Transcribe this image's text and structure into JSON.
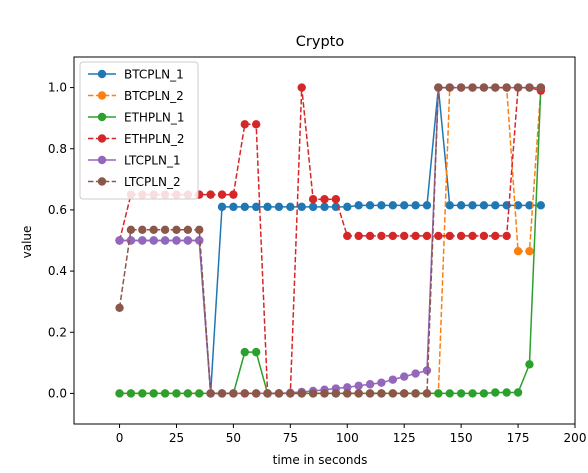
{
  "chart_data": {
    "type": "line",
    "title": "Crypto",
    "xlabel": "time in seconds",
    "ylabel": "value",
    "xlim": [
      -20,
      200
    ],
    "ylim": [
      -0.1,
      1.1
    ],
    "xticks": [
      0,
      25,
      50,
      75,
      100,
      125,
      150,
      175,
      200
    ],
    "xtick_labels": [
      "0",
      "25",
      "50",
      "75",
      "100",
      "125",
      "150",
      "175",
      "200"
    ],
    "yticks": [
      0.0,
      0.2,
      0.4,
      0.6,
      0.8,
      1.0
    ],
    "ytick_labels": [
      "0.0",
      "0.2",
      "0.4",
      "0.6",
      "0.8",
      "1.0"
    ],
    "legend_position": "top-left",
    "grid": false,
    "x": [
      0,
      5,
      10,
      15,
      20,
      25,
      30,
      35,
      40,
      45,
      50,
      55,
      60,
      65,
      70,
      75,
      80,
      85,
      90,
      95,
      100,
      105,
      110,
      115,
      120,
      125,
      130,
      135,
      140,
      145,
      150,
      155,
      160,
      165,
      170,
      175,
      180,
      185
    ],
    "series": [
      {
        "name": "BTCPLN_1",
        "color": "#1f77b4",
        "dash": "solid",
        "values": [
          0.5,
          0.5,
          0.5,
          0.5,
          0.5,
          0.5,
          0.5,
          0.5,
          0.0,
          0.61,
          0.61,
          0.61,
          0.61,
          0.61,
          0.61,
          0.61,
          0.61,
          0.61,
          0.61,
          0.61,
          0.61,
          0.615,
          0.615,
          0.615,
          0.615,
          0.615,
          0.615,
          0.615,
          1.0,
          0.615,
          0.615,
          0.615,
          0.615,
          0.615,
          0.615,
          0.615,
          0.615,
          0.615
        ]
      },
      {
        "name": "BTCPLN_2",
        "color": "#ff7f0e",
        "dash": "dashed",
        "values": [
          0.0,
          0.0,
          0.0,
          0.0,
          0.0,
          0.0,
          0.0,
          0.0,
          0.0,
          0.0,
          0.0,
          0.0,
          0.0,
          0.0,
          0.0,
          0.0,
          0.0,
          0.0,
          0.0,
          0.0,
          0.0,
          0.0,
          0.0,
          0.0,
          0.0,
          0.0,
          0.0,
          0.0,
          0.0,
          1.0,
          1.0,
          1.0,
          1.0,
          1.0,
          1.0,
          0.465,
          0.465,
          1.0
        ]
      },
      {
        "name": "ETHPLN_1",
        "color": "#2ca02c",
        "dash": "solid",
        "values": [
          0.0,
          0.0,
          0.0,
          0.0,
          0.0,
          0.0,
          0.0,
          0.0,
          0.0,
          0.0,
          0.0,
          0.135,
          0.135,
          0.0,
          0.0,
          0.0,
          0.0,
          0.0,
          0.0,
          0.0,
          0.0,
          0.0,
          0.0,
          0.0,
          0.0,
          0.0,
          0.0,
          0.0,
          0.0,
          0.0,
          0.0,
          0.0,
          0.0,
          0.003,
          0.003,
          0.003,
          0.095,
          1.0
        ]
      },
      {
        "name": "ETHPLN_2",
        "color": "#d62728",
        "dash": "dashed",
        "values": [
          0.5,
          0.65,
          0.65,
          0.65,
          0.65,
          0.65,
          0.65,
          0.65,
          0.65,
          0.65,
          0.65,
          0.88,
          0.88,
          0.0,
          0.0,
          0.0,
          1.0,
          0.635,
          0.635,
          0.635,
          0.515,
          0.515,
          0.515,
          0.515,
          0.515,
          0.515,
          0.515,
          0.515,
          0.515,
          0.515,
          0.515,
          0.515,
          0.515,
          0.515,
          0.515,
          1.0,
          1.0,
          0.99
        ]
      },
      {
        "name": "LTCPLN_1",
        "color": "#9467bd",
        "dash": "solid",
        "values": [
          0.5,
          0.5,
          0.5,
          0.5,
          0.5,
          0.5,
          0.5,
          0.5,
          0.0,
          0.0,
          0.0,
          0.0,
          0.0,
          0.0,
          0.0,
          0.002,
          0.005,
          0.008,
          0.012,
          0.016,
          0.02,
          0.025,
          0.03,
          0.035,
          0.045,
          0.055,
          0.065,
          0.075,
          1.0,
          1.0,
          1.0,
          1.0,
          1.0,
          1.0,
          1.0,
          1.0,
          1.0,
          1.0
        ]
      },
      {
        "name": "LTCPLN_2",
        "color": "#8c564b",
        "dash": "dashed",
        "values": [
          0.28,
          0.535,
          0.535,
          0.535,
          0.535,
          0.535,
          0.535,
          0.535,
          0.0,
          0.0,
          0.0,
          0.0,
          0.0,
          0.0,
          0.0,
          0.0,
          0.0,
          0.0,
          0.0,
          0.0,
          0.0,
          0.0,
          0.0,
          0.0,
          0.0,
          0.0,
          0.0,
          0.0,
          1.0,
          1.0,
          1.0,
          1.0,
          1.0,
          1.0,
          1.0,
          1.0,
          1.0,
          1.0
        ]
      }
    ]
  }
}
